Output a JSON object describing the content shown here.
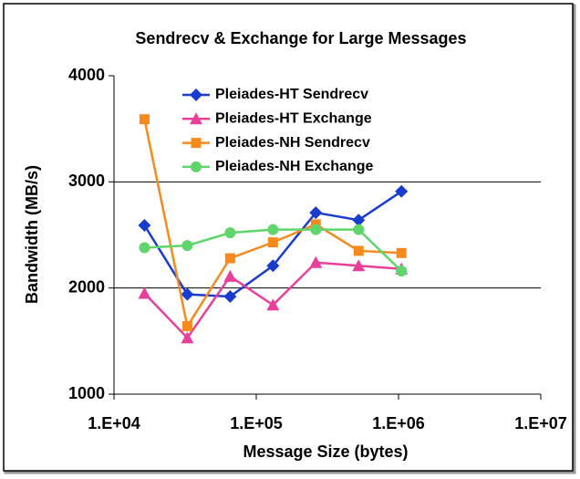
{
  "chart_data": {
    "type": "line",
    "title": "Sendrecv & Exchange for Large Messages",
    "xlabel": "Message Size (bytes)",
    "ylabel": "Bandwidth (MB/s)",
    "x": [
      16384,
      32768,
      65536,
      131072,
      262144,
      524288,
      1048576
    ],
    "xscale": "log",
    "xlim": [
      10000,
      10000000
    ],
    "xticks": [
      {
        "value": 10000,
        "label": "1.E+04"
      },
      {
        "value": 100000,
        "label": "1.E+05"
      },
      {
        "value": 1000000,
        "label": "1.E+06"
      },
      {
        "value": 10000000,
        "label": "1.E+07"
      }
    ],
    "ylim": [
      1000,
      4000
    ],
    "yticks": [
      1000,
      2000,
      3000,
      4000
    ],
    "grid": true,
    "legend": "top",
    "series": [
      {
        "name": "Pleiades-HT Sendrecv",
        "color": "#1a3ccc",
        "marker": "diamond",
        "values": [
          2590,
          1940,
          1920,
          2210,
          2710,
          2640,
          2910
        ]
      },
      {
        "name": "Pleiades-HT Exchange",
        "color": "#e8409a",
        "marker": "triangle",
        "values": [
          1950,
          1530,
          2110,
          1840,
          2240,
          2210,
          2180
        ]
      },
      {
        "name": "Pleiades-NH Sendrecv",
        "color": "#f78a1d",
        "marker": "square",
        "values": [
          3590,
          1640,
          2280,
          2430,
          2600,
          2350,
          2330
        ]
      },
      {
        "name": "Pleiades-NH Exchange",
        "color": "#5fd56b",
        "marker": "circle",
        "values": [
          2380,
          2400,
          2520,
          2550,
          2550,
          2550,
          2160
        ]
      }
    ]
  }
}
